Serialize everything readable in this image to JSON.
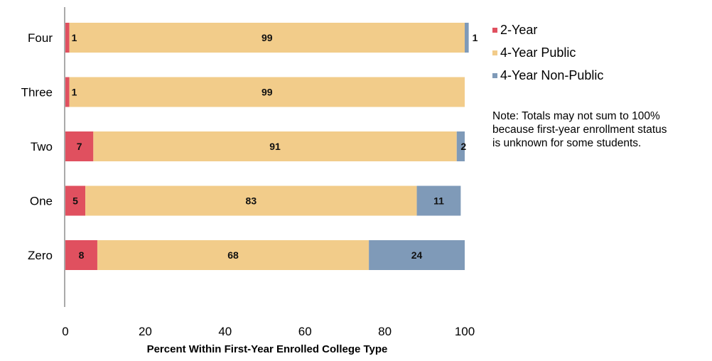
{
  "chart_data": {
    "type": "bar",
    "orientation": "horizontal",
    "stacked": true,
    "title": "",
    "xlabel": "Percent Within First-Year Enrolled College Type",
    "ylabel": "",
    "xlim": [
      0,
      100
    ],
    "xticks": [
      "0",
      "20",
      "40",
      "60",
      "80",
      "100"
    ],
    "categories": [
      "Four",
      "Three",
      "Two",
      "One",
      "Zero"
    ],
    "series": [
      {
        "name": "2-Year",
        "color": "#e0505f",
        "values": [
          1,
          1,
          7,
          5,
          8
        ]
      },
      {
        "name": "4-Year Public",
        "color": "#f2cc8a",
        "values": [
          99,
          99,
          91,
          83,
          68
        ]
      },
      {
        "name": "4-Year Non-Public",
        "color": "#7f9ab8",
        "values": [
          1,
          0,
          2,
          11,
          24
        ]
      }
    ],
    "grid": false,
    "legend_position": "right"
  },
  "note_lines": [
    "Note: Totals may not sum to 100%",
    "because first-year enrollment status",
    "is unknown for some students."
  ]
}
